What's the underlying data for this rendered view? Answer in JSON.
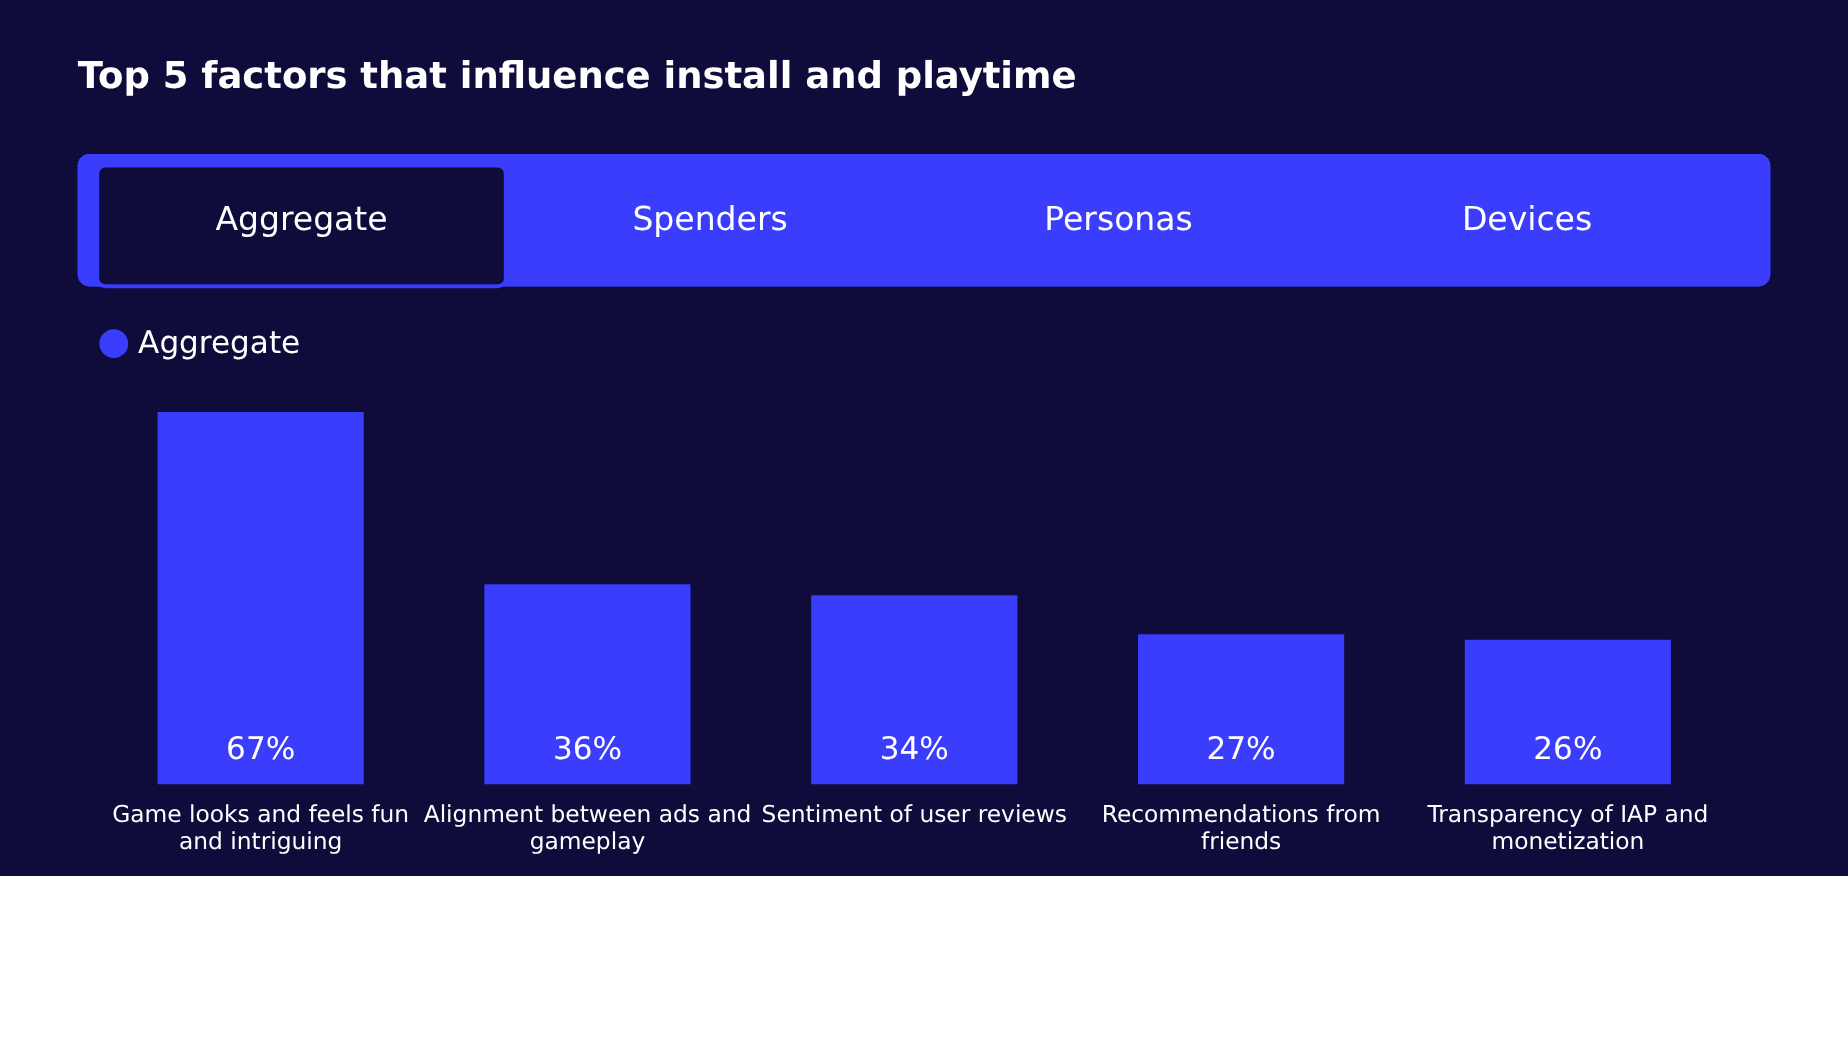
{
  "chart_data": {
    "type": "bar",
    "title": "Top 5 factors that influence install and playtime",
    "annotations": [
      "Aggregate",
      "Spenders",
      "Personas",
      "Devices"
    ],
    "categories": [
      "Game looks and feels fun and intriguing",
      "Alignment between ads and gameplay",
      "Sentiment of user reviews",
      "Recommendations from friends",
      "Transparency of IAP and monetization"
    ],
    "series": [
      {
        "name": "Aggregate",
        "color": "#3a3dfb",
        "values": [
          67,
          36,
          34,
          27,
          26
        ],
        "value_labels": [
          "67%",
          "36%",
          "34%",
          "27%",
          "26%"
        ]
      }
    ],
    "legend": "top"
  }
}
